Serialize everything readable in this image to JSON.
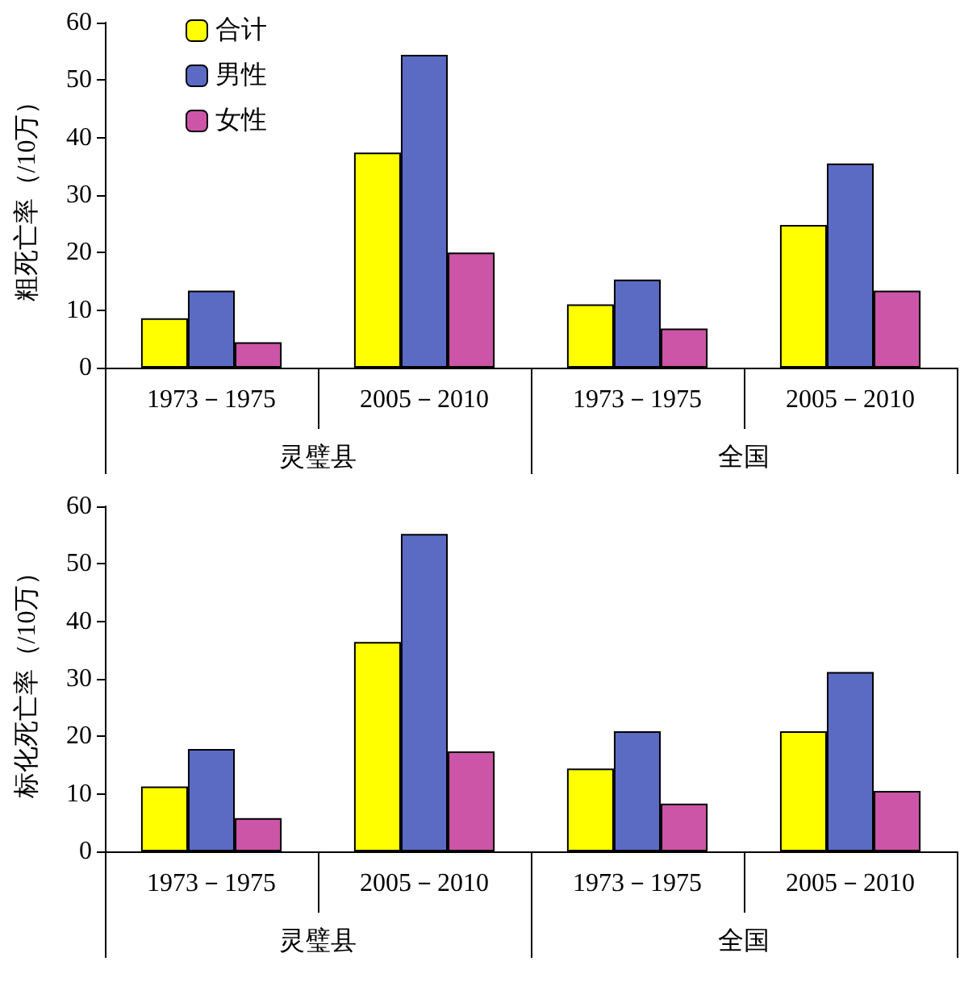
{
  "chart_data": [
    {
      "type": "bar",
      "ylabel": "粗死亡率（/10万）",
      "categories": [
        "1973－1975",
        "2005－2010",
        "1973－1975",
        "2005－2010"
      ],
      "annotations": [
        "灵璧县",
        "全国"
      ],
      "series": [
        {
          "name": "合计",
          "color": "#ffff00",
          "values": [
            8.6,
            37.4,
            11,
            24.8
          ]
        },
        {
          "name": "男性",
          "color": "#5b6bc4",
          "values": [
            13.4,
            54.4,
            15.3,
            35.5
          ]
        },
        {
          "name": "女性",
          "color": "#cc55a8",
          "values": [
            4.4,
            20,
            6.8,
            13.4
          ]
        }
      ],
      "ylim": [
        0,
        60
      ],
      "yticks": [
        0,
        10,
        20,
        30,
        40,
        50,
        60
      ],
      "grid": false,
      "legend": "top left"
    },
    {
      "type": "bar",
      "ylabel": "标化死亡率（/10万）",
      "categories": [
        "1973－1975",
        "2005－2010",
        "1973－1975",
        "2005－2010"
      ],
      "annotations": [
        "灵璧县",
        "全国"
      ],
      "series": [
        {
          "color": "#ffff00",
          "values": [
            11.3,
            36.4,
            14.4,
            20.9
          ]
        },
        {
          "color": "#5b6bc4",
          "values": [
            17.8,
            55.2,
            20.9,
            31.2
          ]
        },
        {
          "color": "#cc55a8",
          "values": [
            5.8,
            17.4,
            8.3,
            10.5
          ]
        }
      ],
      "ylim": [
        0,
        60
      ],
      "yticks": [
        0,
        10,
        20,
        30,
        40,
        50,
        60
      ],
      "grid": false,
      "legend": false
    }
  ]
}
